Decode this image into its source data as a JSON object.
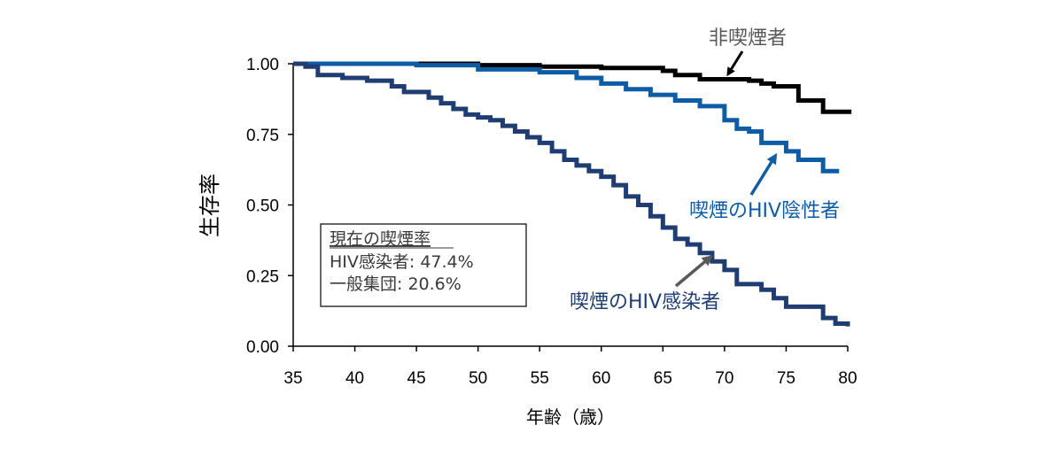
{
  "chart_data": {
    "type": "line",
    "xlabel": "年齢（歳）",
    "ylabel": "生存率",
    "xlim": [
      35,
      80
    ],
    "ylim": [
      0,
      1
    ],
    "xticks": [
      "35",
      "40",
      "45",
      "50",
      "55",
      "60",
      "65",
      "70",
      "75",
      "80"
    ],
    "yticks": [
      "0.00",
      "0.25",
      "0.50",
      "0.75",
      "1.00"
    ],
    "grid": false,
    "colors": {
      "nonsmoker": "#000000",
      "hiv_negative": "#0e5ba6",
      "hiv_infected": "#1f3d73",
      "arrow_gray": "#595959",
      "text_gray": "#595959"
    },
    "series": [
      {
        "name": "非喫煙者",
        "x": [
          35,
          45,
          50,
          55,
          60,
          65,
          66,
          68,
          72,
          73,
          74,
          76,
          78,
          80.3
        ],
        "y": [
          1.0,
          1.0,
          0.995,
          0.99,
          0.985,
          0.975,
          0.96,
          0.945,
          0.94,
          0.93,
          0.92,
          0.87,
          0.83,
          0.83
        ]
      },
      {
        "name": "喫煙のHIV陰性者",
        "x": [
          35,
          45,
          50,
          55,
          58,
          60,
          62,
          64,
          66,
          68,
          70,
          71,
          72,
          73,
          75,
          76,
          78,
          79.3
        ],
        "y": [
          1.0,
          0.995,
          0.98,
          0.97,
          0.95,
          0.93,
          0.91,
          0.89,
          0.87,
          0.85,
          0.8,
          0.77,
          0.76,
          0.72,
          0.69,
          0.66,
          0.62,
          0.62
        ]
      },
      {
        "name": "喫煙のHIV感染者",
        "x": [
          35,
          36,
          37,
          39,
          41,
          43,
          44,
          45,
          46,
          47,
          48,
          49,
          50,
          51,
          52,
          53,
          54,
          55,
          56,
          57,
          58,
          59,
          60,
          61,
          62,
          63,
          64,
          65,
          66,
          67,
          68,
          69,
          70,
          71,
          72,
          73,
          74,
          75,
          76,
          77,
          78,
          79,
          80
        ],
        "y": [
          1.0,
          0.99,
          0.96,
          0.95,
          0.94,
          0.92,
          0.9,
          0.9,
          0.88,
          0.86,
          0.84,
          0.82,
          0.81,
          0.8,
          0.78,
          0.76,
          0.74,
          0.72,
          0.69,
          0.66,
          0.64,
          0.62,
          0.6,
          0.57,
          0.53,
          0.5,
          0.46,
          0.42,
          0.38,
          0.36,
          0.33,
          0.3,
          0.27,
          0.22,
          0.22,
          0.2,
          0.17,
          0.14,
          0.14,
          0.14,
          0.1,
          0.08,
          0.07
        ]
      }
    ],
    "annotations": [
      {
        "text": "非喫煙者",
        "color": "#595959"
      },
      {
        "text": "喫煙のHIV陰性者",
        "color": "#0e5ba6"
      },
      {
        "text": "喫煙のHIV感染者",
        "color": "#1f3d73"
      }
    ],
    "legend_box": {
      "title": "現在の喫煙率",
      "lines": [
        "HIV感染者: 47.4%",
        "一般集団: 20.6%"
      ]
    }
  }
}
